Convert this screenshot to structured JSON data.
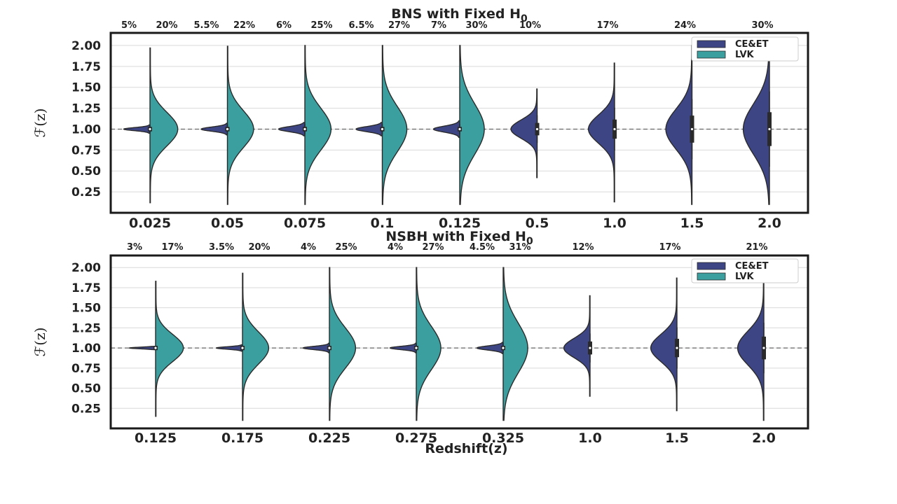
{
  "colors": {
    "ce_et": "#3d4585",
    "lvk": "#3b9f9f",
    "outline": "#2a2a2a",
    "grid": "#d9d9d9"
  },
  "chart_data": [
    {
      "type": "violin",
      "title": "BNS with Fixed H",
      "title_subscript": "0",
      "xlabel": "",
      "ylabel": "ℱ(z)",
      "ylim": [
        0.0,
        2.15
      ],
      "yticks": [
        "0.25",
        "0.50",
        "0.75",
        "1.00",
        "1.25",
        "1.50",
        "1.75",
        "2.00"
      ],
      "reference_line": 1.0,
      "grid": "horizontal",
      "legend_position": "top-right",
      "series": [
        {
          "name": "CE&ET"
        },
        {
          "name": "LVK"
        }
      ],
      "categories": [
        {
          "x": "0.025",
          "ce_et": {
            "min": 0.95,
            "max": 1.05,
            "sigma": 0.018,
            "width": 0.8
          },
          "lvk": {
            "min": 0.12,
            "max": 1.97,
            "sigma": 0.2,
            "width": 0.85
          },
          "pct_ce_et": "5%",
          "pct_lvk": "20%"
        },
        {
          "x": "0.05",
          "ce_et": {
            "min": 0.93,
            "max": 1.07,
            "sigma": 0.025,
            "width": 0.8
          },
          "lvk": {
            "min": 0.1,
            "max": 1.99,
            "sigma": 0.22,
            "width": 0.8
          },
          "pct_ce_et": "5.5%",
          "pct_lvk": "22%"
        },
        {
          "x": "0.075",
          "ce_et": {
            "min": 0.92,
            "max": 1.08,
            "sigma": 0.03,
            "width": 0.8
          },
          "lvk": {
            "min": 0.1,
            "max": 2.0,
            "sigma": 0.25,
            "width": 0.8
          },
          "pct_ce_et": "6%",
          "pct_lvk": "25%"
        },
        {
          "x": "0.1",
          "ce_et": {
            "min": 0.92,
            "max": 1.08,
            "sigma": 0.03,
            "width": 0.8
          },
          "lvk": {
            "min": 0.1,
            "max": 2.0,
            "sigma": 0.27,
            "width": 0.75
          },
          "pct_ce_et": "6.5%",
          "pct_lvk": "27%"
        },
        {
          "x": "0.125",
          "ce_et": {
            "min": 0.9,
            "max": 1.1,
            "sigma": 0.035,
            "width": 0.8
          },
          "lvk": {
            "min": 0.1,
            "max": 2.0,
            "sigma": 0.3,
            "width": 0.75
          },
          "pct_ce_et": "7%",
          "pct_lvk": "30%"
        },
        {
          "x": "0.5",
          "ce_et": {
            "min": 0.42,
            "max": 1.48,
            "sigma": 0.11,
            "width": 0.8
          },
          "lvk": null,
          "pct_ce_et": "10%",
          "pct_lvk": ""
        },
        {
          "x": "1.0",
          "ce_et": {
            "min": 0.13,
            "max": 1.79,
            "sigma": 0.17,
            "width": 0.8
          },
          "lvk": null,
          "pct_ce_et": "17%",
          "pct_lvk": ""
        },
        {
          "x": "1.5",
          "ce_et": {
            "min": 0.1,
            "max": 2.0,
            "sigma": 0.24,
            "width": 0.8
          },
          "lvk": null,
          "pct_ce_et": "24%",
          "pct_lvk": ""
        },
        {
          "x": "2.0",
          "ce_et": {
            "min": 0.1,
            "max": 1.95,
            "sigma": 0.3,
            "width": 0.8
          },
          "lvk": null,
          "pct_ce_et": "30%",
          "pct_lvk": ""
        }
      ]
    },
    {
      "type": "violin",
      "title": "NSBH with Fixed H",
      "title_subscript": "0",
      "xlabel": "Redshift(z)",
      "ylabel": "ℱ(z)",
      "ylim": [
        0.0,
        2.15
      ],
      "yticks": [
        "0.25",
        "0.50",
        "0.75",
        "1.00",
        "1.25",
        "1.50",
        "1.75",
        "2.00"
      ],
      "reference_line": 1.0,
      "grid": "horizontal",
      "legend_position": "top-right",
      "series": [
        {
          "name": "CE&ET"
        },
        {
          "name": "LVK"
        }
      ],
      "categories": [
        {
          "x": "0.125",
          "ce_et": {
            "min": 0.98,
            "max": 1.02,
            "sigma": 0.01,
            "width": 0.8
          },
          "lvk": {
            "min": 0.15,
            "max": 1.83,
            "sigma": 0.17,
            "width": 0.85
          },
          "pct_ce_et": "3%",
          "pct_lvk": "17%"
        },
        {
          "x": "0.175",
          "ce_et": {
            "min": 0.96,
            "max": 1.04,
            "sigma": 0.015,
            "width": 0.8
          },
          "lvk": {
            "min": 0.1,
            "max": 1.93,
            "sigma": 0.2,
            "width": 0.8
          },
          "pct_ce_et": "3.5%",
          "pct_lvk": "20%"
        },
        {
          "x": "0.225",
          "ce_et": {
            "min": 0.94,
            "max": 1.06,
            "sigma": 0.02,
            "width": 0.8
          },
          "lvk": {
            "min": 0.1,
            "max": 2.0,
            "sigma": 0.25,
            "width": 0.8
          },
          "pct_ce_et": "4%",
          "pct_lvk": "25%"
        },
        {
          "x": "0.275",
          "ce_et": {
            "min": 0.94,
            "max": 1.06,
            "sigma": 0.02,
            "width": 0.8
          },
          "lvk": {
            "min": 0.1,
            "max": 2.0,
            "sigma": 0.27,
            "width": 0.75
          },
          "pct_ce_et": "4%",
          "pct_lvk": "27%"
        },
        {
          "x": "0.325",
          "ce_et": {
            "min": 0.93,
            "max": 1.07,
            "sigma": 0.025,
            "width": 0.8
          },
          "lvk": {
            "min": 0.1,
            "max": 2.0,
            "sigma": 0.31,
            "width": 0.75
          },
          "pct_ce_et": "4.5%",
          "pct_lvk": "31%"
        },
        {
          "x": "1.0",
          "ce_et": {
            "min": 0.4,
            "max": 1.65,
            "sigma": 0.12,
            "width": 0.8
          },
          "lvk": null,
          "pct_ce_et": "12%",
          "pct_lvk": ""
        },
        {
          "x": "1.5",
          "ce_et": {
            "min": 0.22,
            "max": 1.87,
            "sigma": 0.17,
            "width": 0.8
          },
          "lvk": null,
          "pct_ce_et": "17%",
          "pct_lvk": ""
        },
        {
          "x": "2.0",
          "ce_et": {
            "min": 0.1,
            "max": 1.8,
            "sigma": 0.21,
            "width": 0.8
          },
          "lvk": null,
          "pct_ce_et": "21%",
          "pct_lvk": ""
        }
      ]
    }
  ]
}
